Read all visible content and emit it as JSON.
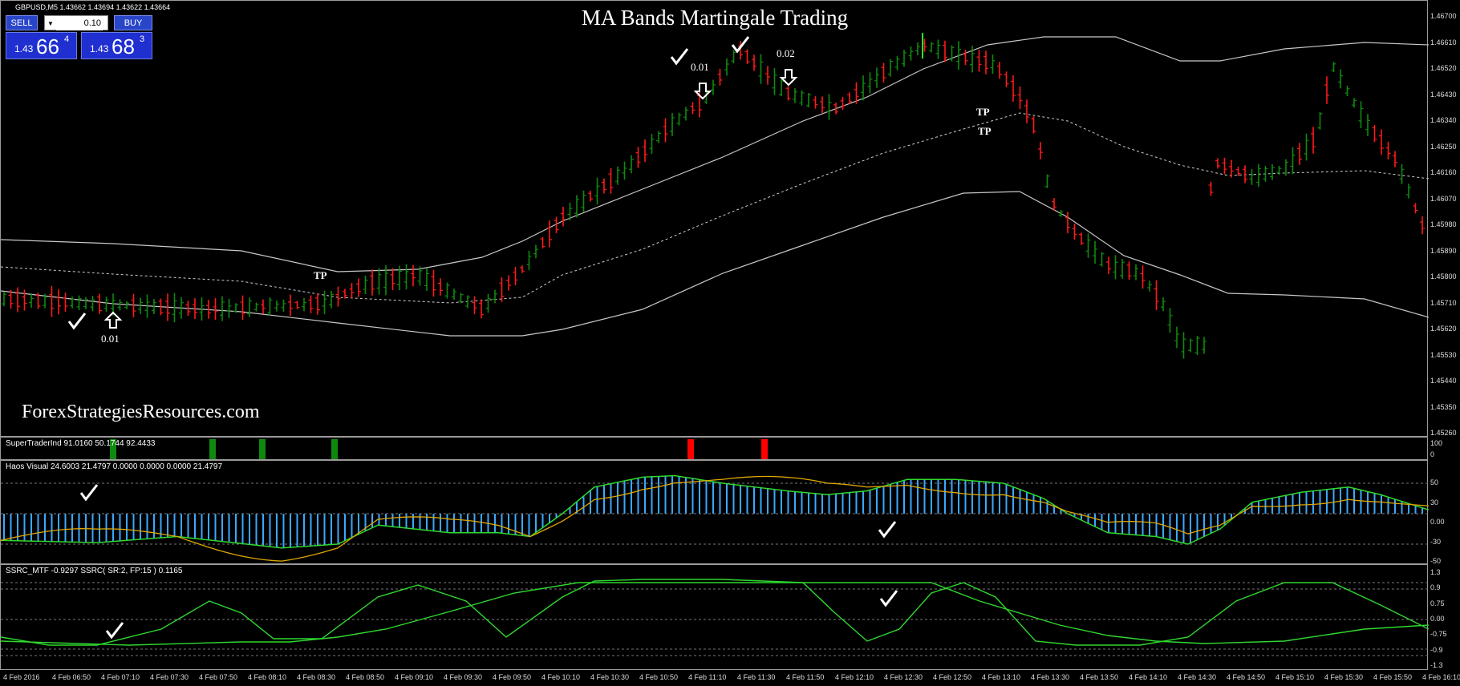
{
  "chart": {
    "symbol_info": "GBPUSD,M5  1.43662 1.43694 1.43622 1.43664",
    "title": "MA Bands Martingale Trading",
    "watermark": "ForexStrategiesResources.com",
    "colors": {
      "bull": "#0f8a0f",
      "bear": "#ff1a1a",
      "band": "#c8c8c8",
      "mid": "#d0d0d0",
      "bg": "#000000"
    },
    "price_axis": [
      "1.46700",
      "1.46610",
      "1.46520",
      "1.46430",
      "1.46340",
      "1.46250",
      "1.46160",
      "1.46070",
      "1.45980",
      "1.45890",
      "1.45800",
      "1.45710",
      "1.45620",
      "1.45530",
      "1.45440",
      "1.45350",
      "1.45260"
    ],
    "annotations": {
      "entry1": "0.01",
      "entry2": "0.01",
      "entry3": "0.02",
      "tp1": "TP",
      "tp2": "TP",
      "tp3": "TP"
    }
  },
  "trade_panel": {
    "sell_label": "SELL",
    "buy_label": "BUY",
    "lot_value": "0.10",
    "sell_prefix": "1.43",
    "sell_big": "66",
    "sell_pip": "4",
    "buy_prefix": "1.43",
    "buy_big": "68",
    "buy_pip": "3"
  },
  "indicators": {
    "supertrader": {
      "label": "SuperTraderInd 91.0160 50.1744 92.4433",
      "axis": [
        "100",
        "0"
      ]
    },
    "haos": {
      "label": "Haos Visual 24.6003 21.4797 0.0000 0.0000 0.0000 21.4797",
      "axis": [
        "50",
        "30",
        "0.00",
        "-30",
        "-50"
      ]
    },
    "ssrc": {
      "label": "SSRC_MTF -0.9297  SSRC( SR:2, FP:15 ) 0.1165",
      "axis": [
        "1.3",
        "0.9",
        "0.75",
        "0.00",
        "-0.75",
        "-0.9",
        "-1.3"
      ]
    }
  },
  "time_axis": [
    "4 Feb 2016",
    "4 Feb 06:50",
    "4 Feb 07:10",
    "4 Feb 07:30",
    "4 Feb 07:50",
    "4 Feb 08:10",
    "4 Feb 08:30",
    "4 Feb 08:50",
    "4 Feb 09:10",
    "4 Feb 09:30",
    "4 Feb 09:50",
    "4 Feb 10:10",
    "4 Feb 10:30",
    "4 Feb 10:50",
    "4 Feb 11:10",
    "4 Feb 11:30",
    "4 Feb 11:50",
    "4 Feb 12:10",
    "4 Feb 12:30",
    "4 Feb 12:50",
    "4 Feb 13:10",
    "4 Feb 13:30",
    "4 Feb 13:50",
    "4 Feb 14:10",
    "4 Feb 14:30",
    "4 Feb 14:50",
    "4 Feb 15:10",
    "4 Feb 15:30",
    "4 Feb 15:50",
    "4 Feb 16:10"
  ]
}
